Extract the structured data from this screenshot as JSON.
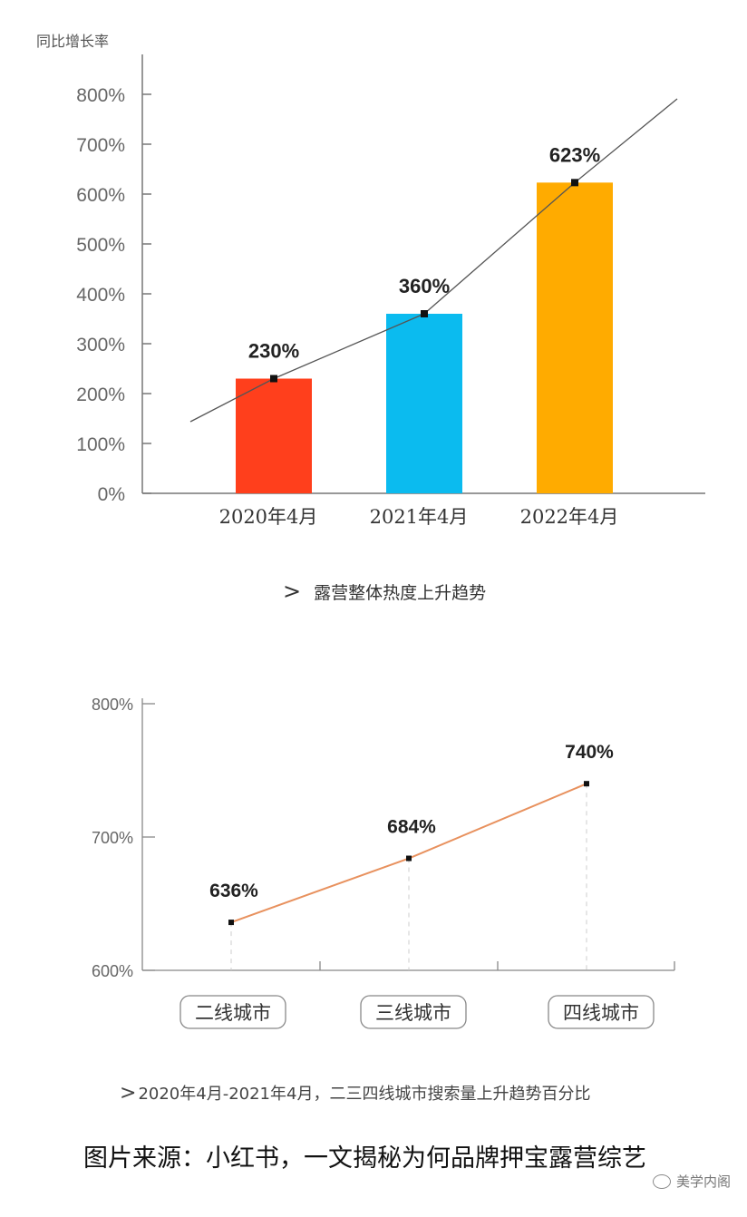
{
  "chart_data": [
    {
      "type": "bar",
      "ylabel": "同比增长率",
      "categories": [
        "2020年4月",
        "2021年4月",
        "2022年4月"
      ],
      "values": [
        230,
        360,
        623
      ],
      "value_labels": [
        "230%",
        "360%",
        "623%"
      ],
      "bar_colors": [
        "#ff3f1c",
        "#0bbbef",
        "#ffab00"
      ],
      "yticks": [
        "0%",
        "100%",
        "200%",
        "300%",
        "400%",
        "500%",
        "600%",
        "700%",
        "800%"
      ],
      "ylim": [
        0,
        800
      ],
      "trendline": true,
      "caption": "露营整体热度上升趋势"
    },
    {
      "type": "line",
      "categories": [
        "二线城市",
        "三线城市",
        "四线城市"
      ],
      "values": [
        636,
        684,
        740
      ],
      "value_labels": [
        "636%",
        "684%",
        "740%"
      ],
      "line_color": "#e8915e",
      "yticks": [
        "600%",
        "700%",
        "800%"
      ],
      "ylim": [
        600,
        800
      ],
      "caption": "2020年4月-2021年4月，二三四线城市搜索量上升趋势百分比"
    }
  ],
  "captions": {
    "arrow1": ">",
    "chart1": "露营整体热度上升趋势",
    "arrow2": ">",
    "chart2": "2020年4月-2021年4月，二三四线城市搜索量上升趋势百分比"
  },
  "source": "图片来源：小红书，一文揭秘为何品牌押宝露营综艺",
  "watermark": "美学内阁"
}
